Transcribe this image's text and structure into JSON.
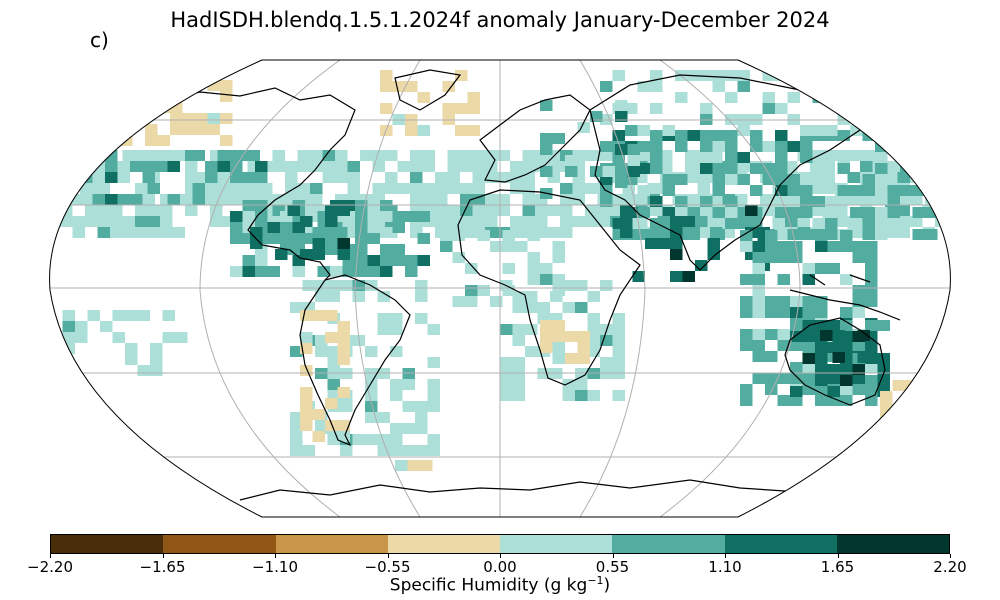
{
  "title": "HadISDH.blendq.1.5.1.2024f anomaly January-December 2024",
  "panel_label": "c)",
  "colorbar": {
    "label_main": "Specific Humidity (g kg",
    "label_sup": "−1",
    "label_close": ")",
    "ticks": [
      "−2.20",
      "−1.65",
      "−1.10",
      "−0.55",
      "0.00",
      "0.55",
      "1.10",
      "1.65",
      "2.20"
    ],
    "colors": [
      "#4a2e0a",
      "#8f5616",
      "#c99548",
      "#ecd9a8",
      "#acdfd8",
      "#52aca0",
      "#0f6f62",
      "#01372e"
    ]
  },
  "map": {
    "projection": "robinson",
    "gridlines": true,
    "anomaly_bins": [
      "#4a2e0a",
      "#8f5616",
      "#c99548",
      "#ecd9a8",
      "#acdfd8",
      "#52aca0",
      "#0f6f62",
      "#01372e"
    ]
  }
}
